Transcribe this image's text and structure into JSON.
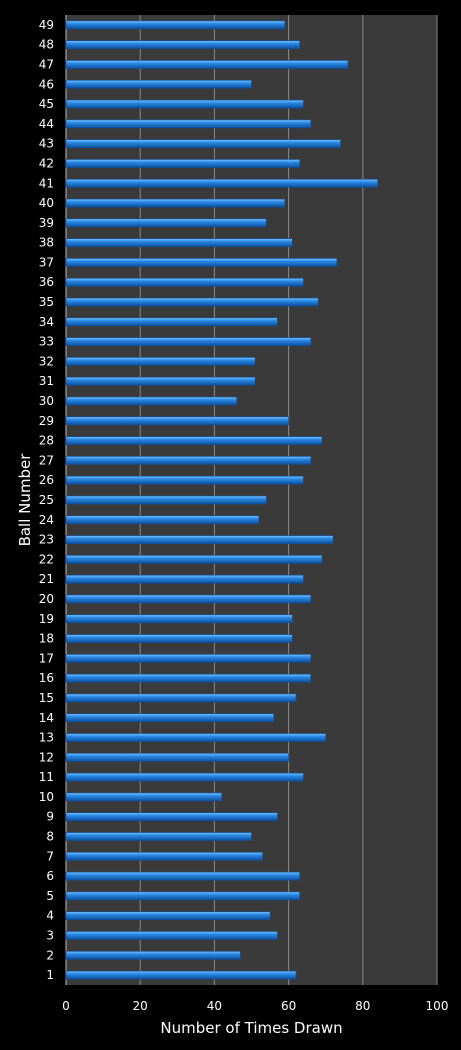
{
  "chart_data": {
    "type": "bar",
    "orientation": "horizontal",
    "title": "",
    "xlabel": "Number of Times Drawn",
    "ylabel": "Ball Number",
    "xlim": [
      0,
      100
    ],
    "xticks": [
      0,
      20,
      40,
      60,
      80,
      100
    ],
    "grid": true,
    "legend": "none",
    "colors": {
      "background": "#000000",
      "plot_area": "#3a3a3a",
      "bar": "#2a8ae6",
      "bar_highlight": "#7cc4ff",
      "bar_shadow": "#0d4f9e",
      "gridline": "#8a8a8a",
      "text": "#ffffff"
    },
    "categories": [
      "1",
      "2",
      "3",
      "4",
      "5",
      "6",
      "7",
      "8",
      "9",
      "10",
      "11",
      "12",
      "13",
      "14",
      "15",
      "16",
      "17",
      "18",
      "19",
      "20",
      "21",
      "22",
      "23",
      "24",
      "25",
      "26",
      "27",
      "28",
      "29",
      "30",
      "31",
      "32",
      "33",
      "34",
      "35",
      "36",
      "37",
      "38",
      "39",
      "40",
      "41",
      "42",
      "43",
      "44",
      "45",
      "46",
      "47",
      "48",
      "49"
    ],
    "values": [
      62,
      47,
      57,
      55,
      63,
      63,
      53,
      50,
      57,
      42,
      64,
      60,
      70,
      56,
      62,
      66,
      66,
      61,
      61,
      66,
      64,
      69,
      72,
      52,
      54,
      64,
      66,
      69,
      60,
      46,
      51,
      51,
      66,
      57,
      68,
      64,
      73,
      61,
      54,
      59,
      84,
      63,
      74,
      66,
      64,
      50,
      76,
      63,
      59
    ]
  }
}
